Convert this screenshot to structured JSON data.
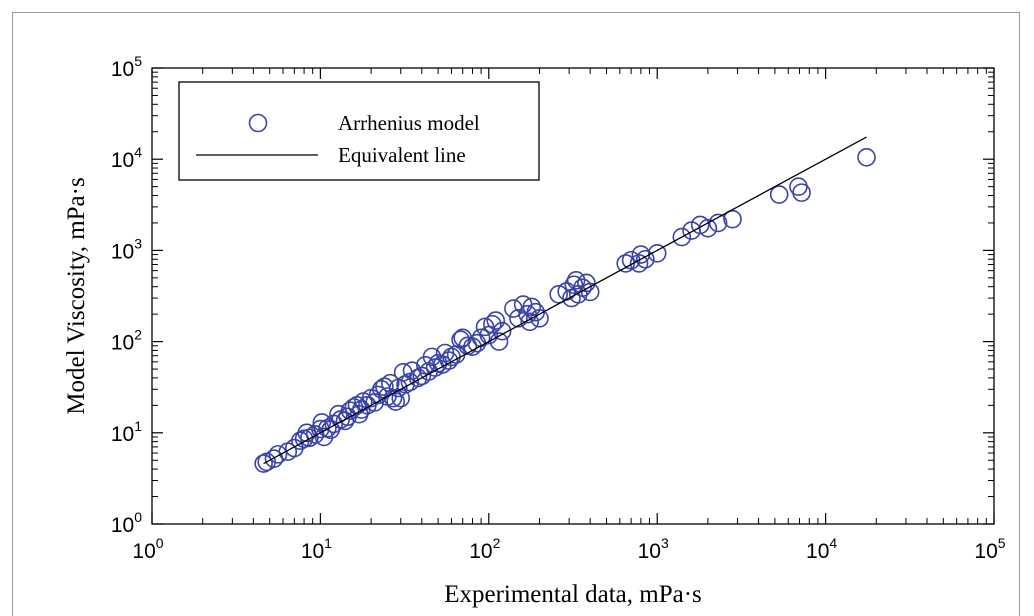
{
  "chart_data": {
    "type": "scatter",
    "xlabel": "Experimental data, mPa·s",
    "ylabel": "Model Viscosity, mPa·s",
    "xscale": "log",
    "yscale": "log",
    "xlim": [
      1,
      100000
    ],
    "ylim": [
      1,
      100000
    ],
    "x_ticks": [
      {
        "base": "10",
        "exp": "0"
      },
      {
        "base": "10",
        "exp": "1"
      },
      {
        "base": "10",
        "exp": "2"
      },
      {
        "base": "10",
        "exp": "3"
      },
      {
        "base": "10",
        "exp": "4"
      },
      {
        "base": "10",
        "exp": "5"
      }
    ],
    "y_ticks": [
      {
        "base": "10",
        "exp": "0"
      },
      {
        "base": "10",
        "exp": "1"
      },
      {
        "base": "10",
        "exp": "2"
      },
      {
        "base": "10",
        "exp": "3"
      },
      {
        "base": "10",
        "exp": "4"
      },
      {
        "base": "10",
        "exp": "5"
      }
    ],
    "grid": false,
    "legend_position": "top-left",
    "series": [
      {
        "name": "Arrhenius model",
        "kind": "marker",
        "marker": "open-circle",
        "color": "#3a44a8",
        "points": [
          [
            4.6,
            4.6
          ],
          [
            4.8,
            4.8
          ],
          [
            5.3,
            5.2
          ],
          [
            5.6,
            5.8
          ],
          [
            6.4,
            6.2
          ],
          [
            7.0,
            6.8
          ],
          [
            7.6,
            8.2
          ],
          [
            8.0,
            8.6
          ],
          [
            8.3,
            10.0
          ],
          [
            8.6,
            8.8
          ],
          [
            9.3,
            9.6
          ],
          [
            10.0,
            11.0
          ],
          [
            10.2,
            13.0
          ],
          [
            10.5,
            9.0
          ],
          [
            11.0,
            11.2
          ],
          [
            11.5,
            10.8
          ],
          [
            12.0,
            12.5
          ],
          [
            12.8,
            16.0
          ],
          [
            13.2,
            14.0
          ],
          [
            14.0,
            13.5
          ],
          [
            14.5,
            15.0
          ],
          [
            15.0,
            17.5
          ],
          [
            15.8,
            19.0
          ],
          [
            16.5,
            20.0
          ],
          [
            17.0,
            16.0
          ],
          [
            17.5,
            18.0
          ],
          [
            18.0,
            22.0
          ],
          [
            19.0,
            20.0
          ],
          [
            20.0,
            24.0
          ],
          [
            21.0,
            21.5
          ],
          [
            22.0,
            26.0
          ],
          [
            23.0,
            30.0
          ],
          [
            24.0,
            32.0
          ],
          [
            25.0,
            25.0
          ],
          [
            26.0,
            35.0
          ],
          [
            27.0,
            24.0
          ],
          [
            28.0,
            22.0
          ],
          [
            29.0,
            31.0
          ],
          [
            30.0,
            24.0
          ],
          [
            31.0,
            46.0
          ],
          [
            32.0,
            34.0
          ],
          [
            34.0,
            36.0
          ],
          [
            35.0,
            48.0
          ],
          [
            38.0,
            40.0
          ],
          [
            40.0,
            42.0
          ],
          [
            42.0,
            55.0
          ],
          [
            44.0,
            47.0
          ],
          [
            46.0,
            68.0
          ],
          [
            48.0,
            52.0
          ],
          [
            50.0,
            58.0
          ],
          [
            53.0,
            56.0
          ],
          [
            55.0,
            75.0
          ],
          [
            58.0,
            62.0
          ],
          [
            60.0,
            68.0
          ],
          [
            64.0,
            72.0
          ],
          [
            68.0,
            105.0
          ],
          [
            70.0,
            110.0
          ],
          [
            75.0,
            90.0
          ],
          [
            80.0,
            88.0
          ],
          [
            85.0,
            96.0
          ],
          [
            90.0,
            110.0
          ],
          [
            95.0,
            145.0
          ],
          [
            100.0,
            118.0
          ],
          [
            105.0,
            155.0
          ],
          [
            110.0,
            170.0
          ],
          [
            115.0,
            100.0
          ],
          [
            120.0,
            130.0
          ],
          [
            140.0,
            230.0
          ],
          [
            150.0,
            180.0
          ],
          [
            160.0,
            255.0
          ],
          [
            170.0,
            200.0
          ],
          [
            175.0,
            165.0
          ],
          [
            180.0,
            240.0
          ],
          [
            190.0,
            210.0
          ],
          [
            200.0,
            180.0
          ],
          [
            260.0,
            330.0
          ],
          [
            290.0,
            355.0
          ],
          [
            310.0,
            300.0
          ],
          [
            320.0,
            420.0
          ],
          [
            330.0,
            470.0
          ],
          [
            340.0,
            330.0
          ],
          [
            360.0,
            390.0
          ],
          [
            380.0,
            440.0
          ],
          [
            400.0,
            350.0
          ],
          [
            650.0,
            720.0
          ],
          [
            700.0,
            780.0
          ],
          [
            780.0,
            720.0
          ],
          [
            800.0,
            900.0
          ],
          [
            850.0,
            800.0
          ],
          [
            1000.0,
            930.0
          ],
          [
            1400.0,
            1400.0
          ],
          [
            1600.0,
            1650.0
          ],
          [
            1800.0,
            1900.0
          ],
          [
            2000.0,
            1750.0
          ],
          [
            2300.0,
            2000.0
          ],
          [
            2800.0,
            2200.0
          ],
          [
            5300.0,
            4100.0
          ],
          [
            6900.0,
            5000.0
          ],
          [
            7200.0,
            4300.0
          ],
          [
            17500.0,
            10500.0
          ]
        ]
      },
      {
        "name": "Equivalent line",
        "kind": "line",
        "color": "#000000",
        "points": [
          [
            4.6,
            4.6
          ],
          [
            17500.0,
            17500.0
          ]
        ]
      }
    ]
  }
}
